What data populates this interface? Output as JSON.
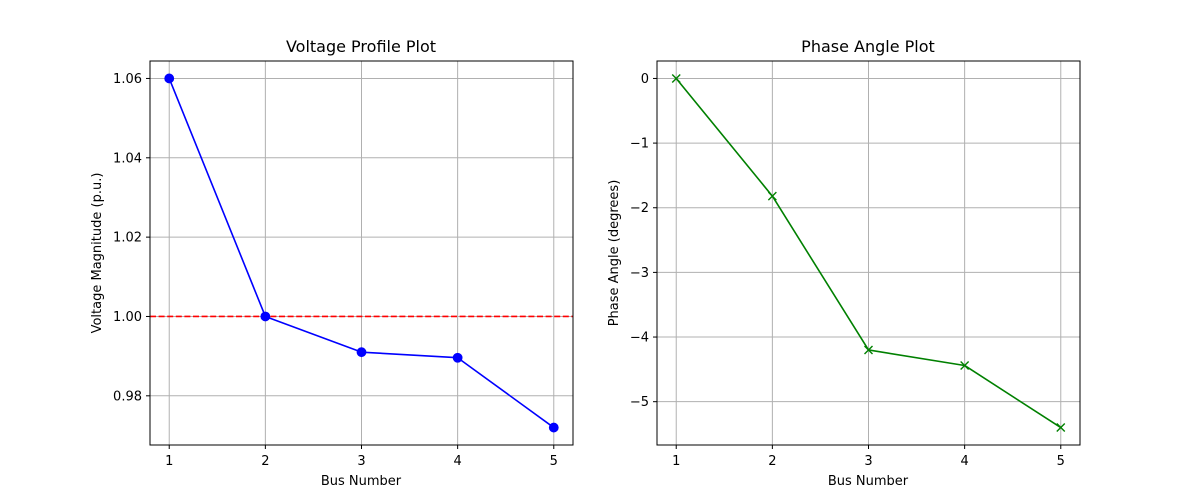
{
  "chart_data": [
    {
      "type": "line",
      "title": "Voltage Profile Plot",
      "xlabel": "Bus Number",
      "ylabel": "Voltage Magnitude (p.u.)",
      "x": [
        1,
        2,
        3,
        4,
        5
      ],
      "xticks": [
        "1",
        "2",
        "3",
        "4",
        "5"
      ],
      "xlim": [
        0.8,
        5.2
      ],
      "ylim": [
        0.9676,
        1.0644
      ],
      "yticks": [
        0.98,
        1.0,
        1.02,
        1.04,
        1.06
      ],
      "ytick_labels": [
        "0.98",
        "1.00",
        "1.02",
        "1.04",
        "1.06"
      ],
      "grid": true,
      "series": [
        {
          "values": [
            1.06,
            1.0,
            0.991,
            0.9896,
            0.972
          ],
          "color": "#0000ff",
          "marker": "circle"
        }
      ],
      "reference_lines": [
        {
          "y": 1.0,
          "color": "#ff0000",
          "style": "dashed"
        }
      ]
    },
    {
      "type": "line",
      "title": "Phase Angle Plot",
      "xlabel": "Bus Number",
      "ylabel": "Phase Angle (degrees)",
      "x": [
        1,
        2,
        3,
        4,
        5
      ],
      "xticks": [
        "1",
        "2",
        "3",
        "4",
        "5"
      ],
      "xlim": [
        0.8,
        5.2
      ],
      "ylim": [
        -5.67,
        0.27
      ],
      "yticks": [
        0,
        -1,
        -2,
        -3,
        -4,
        -5
      ],
      "ytick_labels": [
        "0",
        "−1",
        "−2",
        "−3",
        "−4",
        "−5"
      ],
      "grid": true,
      "series": [
        {
          "values": [
            0.0,
            -1.82,
            -4.2,
            -4.44,
            -5.4
          ],
          "color": "#008000",
          "marker": "x"
        }
      ]
    }
  ]
}
